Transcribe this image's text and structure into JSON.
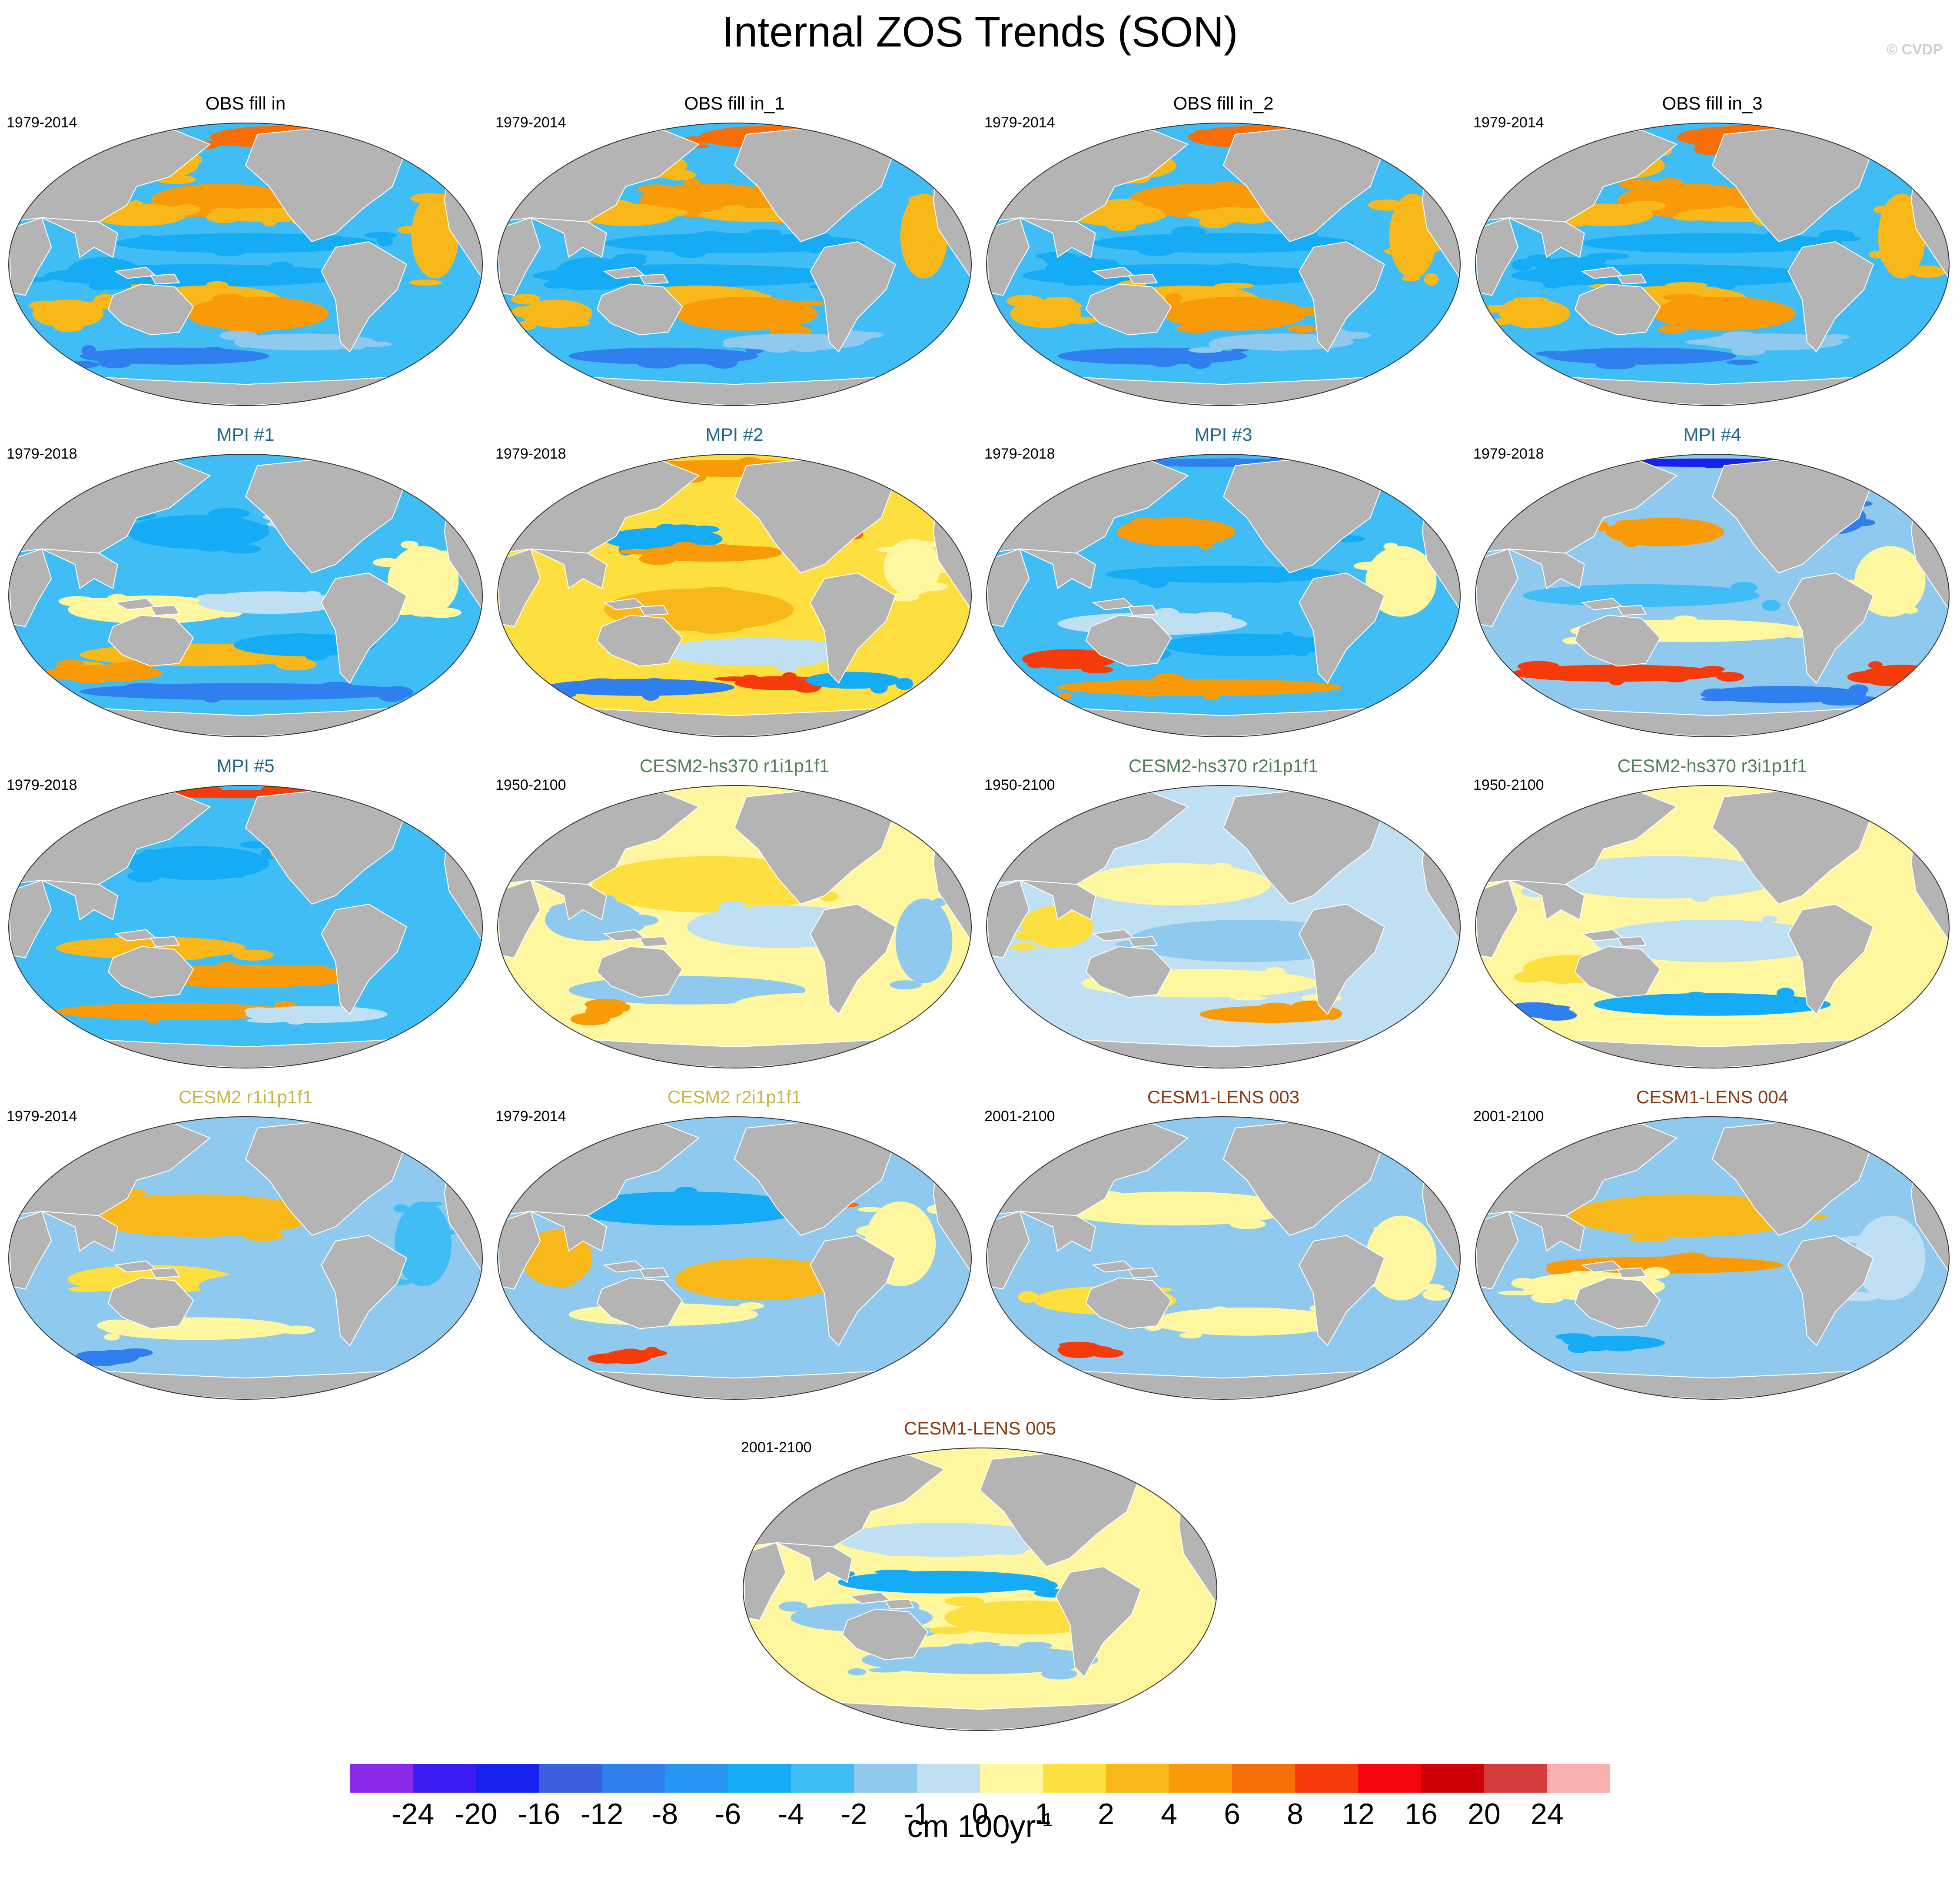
{
  "title": "Internal ZOS Trends (SON)",
  "copyright": "© CVDP",
  "colors": {
    "land": "#b4b4b4",
    "ocean_base": "#fff7a0",
    "title_obs": "#000000",
    "title_mpi": "#1c6688",
    "title_cesm2_hs370": "#4f7f57",
    "title_cesm2": "#c8b44a",
    "title_cesm1_lens": "#8a3a10"
  },
  "panels": [
    {
      "title": "OBS fill in",
      "years": "1979-2014",
      "group": "obs",
      "pattern": "obs"
    },
    {
      "title": "OBS fill in_1",
      "years": "1979-2014",
      "group": "obs",
      "pattern": "obs"
    },
    {
      "title": "OBS fill in_2",
      "years": "1979-2014",
      "group": "obs",
      "pattern": "obs"
    },
    {
      "title": "OBS fill in_3",
      "years": "1979-2014",
      "group": "obs",
      "pattern": "obs"
    },
    {
      "title": "MPI #1",
      "years": "1979-2018",
      "group": "mpi",
      "pattern": "mpi1"
    },
    {
      "title": "MPI #2",
      "years": "1979-2018",
      "group": "mpi",
      "pattern": "mpi2"
    },
    {
      "title": "MPI #3",
      "years": "1979-2018",
      "group": "mpi",
      "pattern": "mpi3"
    },
    {
      "title": "MPI #4",
      "years": "1979-2018",
      "group": "mpi",
      "pattern": "mpi4"
    },
    {
      "title": "MPI #5",
      "years": "1979-2018",
      "group": "mpi",
      "pattern": "mpi5"
    },
    {
      "title": "CESM2-hs370 r1i1p1f1",
      "years": "1950-2100",
      "group": "cesm2_hs370",
      "pattern": "weak1"
    },
    {
      "title": "CESM2-hs370 r2i1p1f1",
      "years": "1950-2100",
      "group": "cesm2_hs370",
      "pattern": "weak2"
    },
    {
      "title": "CESM2-hs370 r3i1p1f1",
      "years": "1950-2100",
      "group": "cesm2_hs370",
      "pattern": "weak3"
    },
    {
      "title": "CESM2 r1i1p1f1",
      "years": "1979-2014",
      "group": "cesm2",
      "pattern": "cesm2a"
    },
    {
      "title": "CESM2 r2i1p1f1",
      "years": "1979-2014",
      "group": "cesm2",
      "pattern": "cesm2b"
    },
    {
      "title": "CESM1-LENS 003",
      "years": "2001-2100",
      "group": "cesm1_lens",
      "pattern": "lens3"
    },
    {
      "title": "CESM1-LENS 004",
      "years": "2001-2100",
      "group": "cesm1_lens",
      "pattern": "lens4"
    },
    {
      "title": "CESM1-LENS 005",
      "years": "2001-2100",
      "group": "cesm1_lens",
      "pattern": "lens5"
    }
  ],
  "colorbar": {
    "colors": [
      "#8a2be8",
      "#3b1cf2",
      "#1722f0",
      "#3b5fe0",
      "#2f7fef",
      "#2795f2",
      "#16acf5",
      "#3fbdf4",
      "#8fcaee",
      "#bfe0f3",
      "#fff7a0",
      "#fde040",
      "#f8b81a",
      "#f99a08",
      "#f86e06",
      "#f53b0a",
      "#f4060c",
      "#cc0208",
      "#d63c3c",
      "#f8b0b0"
    ],
    "labels": [
      "-24",
      "-20",
      "-16",
      "-12",
      "-8",
      "-6",
      "-4",
      "-2",
      "-1",
      "0",
      "1",
      "2",
      "4",
      "6",
      "8",
      "12",
      "16",
      "20",
      "24"
    ],
    "unit": "cm 100yr",
    "unit_exponent": "-1"
  }
}
